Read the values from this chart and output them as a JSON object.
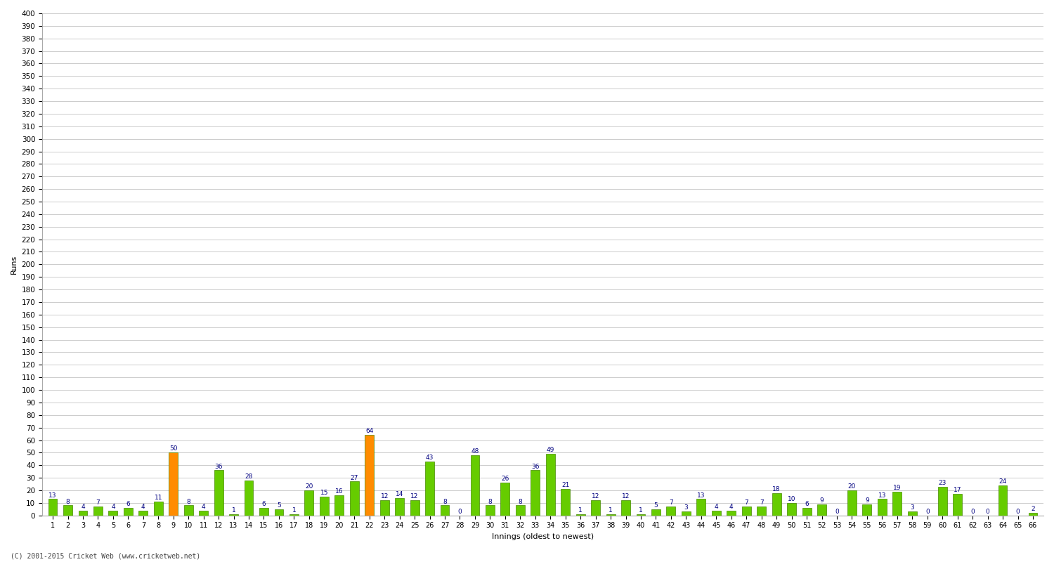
{
  "innings": [
    1,
    2,
    3,
    4,
    5,
    6,
    7,
    8,
    9,
    10,
    11,
    12,
    13,
    14,
    15,
    16,
    17,
    18,
    19,
    20,
    21,
    22,
    23,
    24,
    25,
    26,
    27,
    28,
    29,
    30,
    31,
    32,
    33,
    34,
    35,
    36,
    37,
    38,
    39,
    40,
    41,
    42,
    43,
    44,
    45,
    46,
    47,
    48,
    49,
    50,
    51,
    52,
    53,
    54,
    55,
    56,
    57,
    58,
    59,
    60,
    61,
    62,
    63,
    64,
    65,
    66
  ],
  "scores": [
    13,
    8,
    4,
    7,
    4,
    6,
    4,
    11,
    50,
    8,
    4,
    36,
    1,
    28,
    6,
    5,
    1,
    20,
    15,
    16,
    27,
    64,
    12,
    14,
    12,
    43,
    8,
    0,
    48,
    8,
    26,
    8,
    36,
    49,
    21,
    1,
    12,
    1,
    12,
    1,
    5,
    7,
    3,
    13,
    4,
    4,
    7,
    7,
    18,
    10,
    6,
    9,
    0,
    20,
    9,
    13,
    19,
    3,
    0,
    23,
    17,
    0,
    0,
    24,
    0,
    2
  ],
  "highlight_indices": [
    8,
    21
  ],
  "highlight_color": "#FF8C00",
  "normal_color": "#66CC00",
  "bar_edge_color": "#448800",
  "xlabel": "Innings (oldest to newest)",
  "ylabel": "Runs",
  "ylim_max": 400,
  "label_color": "#000080",
  "label_fontsize": 6.5,
  "bg_color": "#ffffff",
  "grid_color": "#cccccc",
  "footer": "(C) 2001-2015 Cricket Web (www.cricketweb.net)",
  "xtick_fontsize": 7,
  "ytick_fontsize": 7.5,
  "ylabel_fontsize": 8,
  "xlabel_fontsize": 8
}
